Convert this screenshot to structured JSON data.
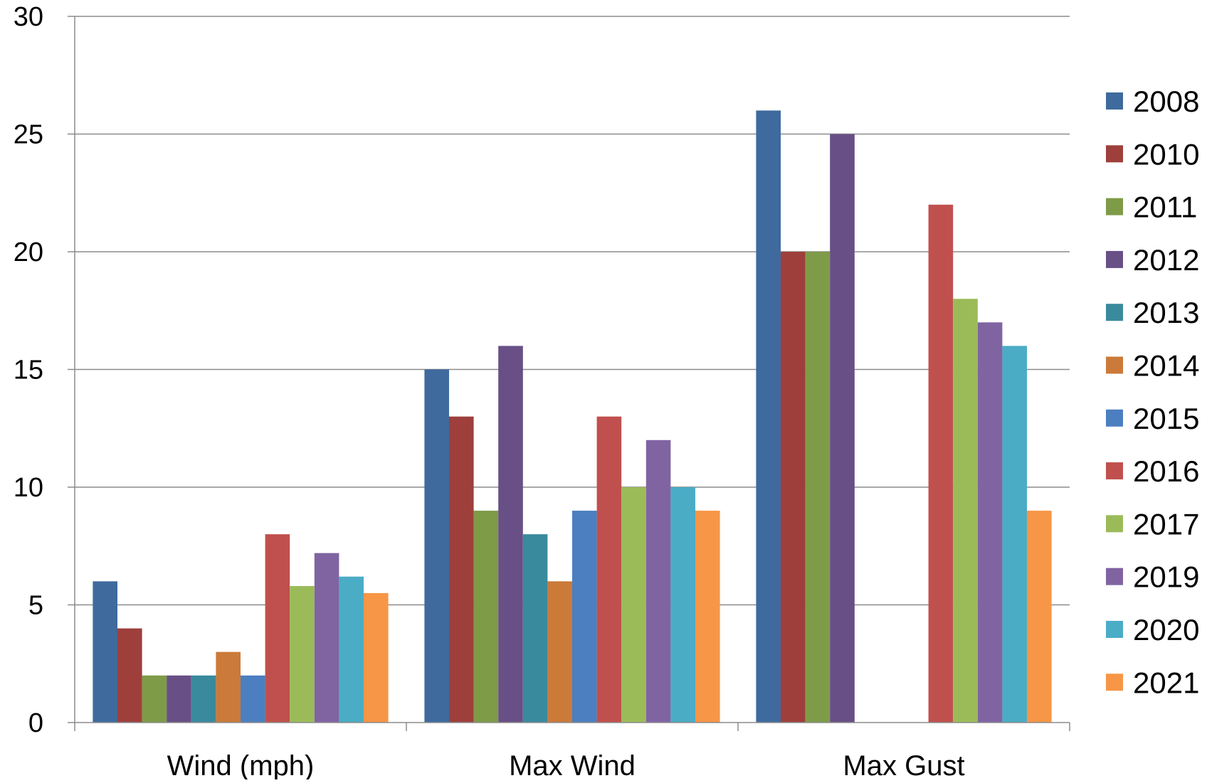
{
  "chart_data": {
    "type": "bar",
    "title": "",
    "xlabel": "",
    "ylabel": "",
    "ylim": [
      0,
      30
    ],
    "yticks": [
      0,
      5,
      10,
      15,
      20,
      25,
      30
    ],
    "grid": "horizontal",
    "legend_position": "right",
    "categories": [
      "Wind (mph)",
      "Max Wind",
      "Max Gust"
    ],
    "series": [
      {
        "name": "2008",
        "color": "#3e6a9e",
        "values": [
          6,
          15,
          26
        ]
      },
      {
        "name": "2010",
        "color": "#9e3f3c",
        "values": [
          4,
          13,
          20
        ]
      },
      {
        "name": "2011",
        "color": "#7e9b48",
        "values": [
          2,
          9,
          20
        ]
      },
      {
        "name": "2012",
        "color": "#684f86",
        "values": [
          2,
          16,
          25
        ]
      },
      {
        "name": "2013",
        "color": "#398a9d",
        "values": [
          2,
          8,
          null
        ]
      },
      {
        "name": "2014",
        "color": "#cb7a39",
        "values": [
          3,
          6,
          null
        ]
      },
      {
        "name": "2015",
        "color": "#4b7fc0",
        "values": [
          2,
          9,
          null
        ]
      },
      {
        "name": "2016",
        "color": "#c0504d",
        "values": [
          8,
          13,
          22
        ]
      },
      {
        "name": "2017",
        "color": "#9bbb59",
        "values": [
          5.8,
          10,
          18
        ]
      },
      {
        "name": "2019",
        "color": "#8064a2",
        "values": [
          7.2,
          12,
          17
        ]
      },
      {
        "name": "2020",
        "color": "#4bacc6",
        "values": [
          6.2,
          10,
          16
        ]
      },
      {
        "name": "2021",
        "color": "#f79646",
        "values": [
          5.5,
          9,
          9
        ]
      }
    ]
  }
}
